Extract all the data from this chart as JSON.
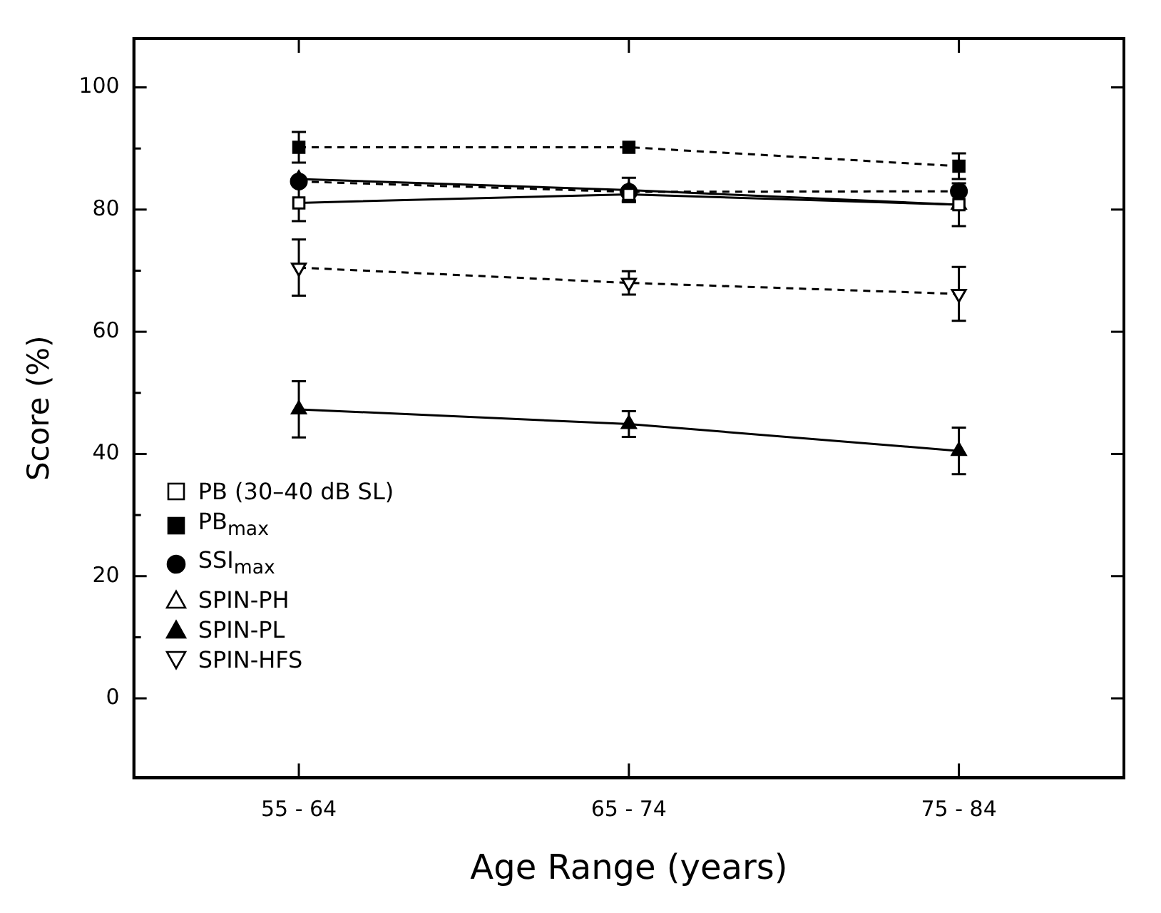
{
  "chart_data": {
    "type": "line",
    "xlabel": "Age Range (years)",
    "ylabel": "Score (%)",
    "categories": [
      "55 - 64",
      "65 - 74",
      "75 - 84"
    ],
    "ylim": [
      -13,
      108
    ],
    "yticks": [
      0,
      20,
      40,
      60,
      80,
      100
    ],
    "grid": false,
    "legend": "bottom left",
    "series": [
      {
        "name": "PB (30–40 dB SL)",
        "color": "#000000",
        "marker": "square-open",
        "line_style": "solid",
        "values": [
          81.1,
          82.5,
          80.8
        ],
        "errors": [
          3,
          1,
          3.5
        ]
      },
      {
        "name": "PB$_{max}$",
        "color": "#000000",
        "marker": "square",
        "line_style": "dashed",
        "values": [
          90.2,
          90.2,
          87.1
        ],
        "errors": [
          2.5,
          null,
          2.1
        ]
      },
      {
        "name": "SSI$_{max}$",
        "color": "#000000",
        "marker": "circle",
        "line_style": "dashed",
        "values": [
          84.6,
          82.9,
          83
        ],
        "errors": [
          null,
          null,
          null
        ]
      },
      {
        "name": "SPIN-PH",
        "color": "#000000",
        "marker": "triangle-open",
        "line_style": "solid",
        "values": [
          85,
          83.2,
          80.8
        ],
        "errors": [
          null,
          2,
          null
        ]
      },
      {
        "name": "SPIN-PL",
        "color": "#000000",
        "marker": "triangle",
        "line_style": "solid",
        "values": [
          47.3,
          44.9,
          40.5
        ],
        "errors": [
          4.6,
          2.1,
          3.8
        ]
      },
      {
        "name": "SPIN-HFS",
        "color": "#000000",
        "marker": "triangle-down-open",
        "line_style": "dashed",
        "values": [
          70.5,
          68,
          66.2
        ],
        "errors": [
          4.6,
          1.9,
          4.4
        ]
      }
    ]
  }
}
